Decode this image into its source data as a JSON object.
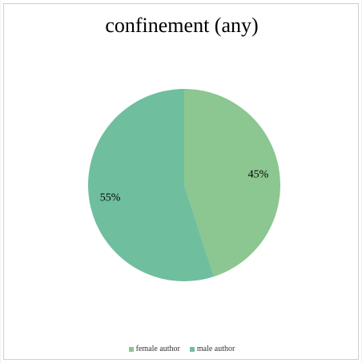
{
  "chart_data": {
    "type": "pie",
    "title": "confinement (any)",
    "categories": [
      "female author",
      "male author"
    ],
    "values": [
      45,
      55
    ],
    "labels": [
      "45%",
      "55%"
    ],
    "colors": [
      "#8cc690",
      "#6fbf9f"
    ],
    "legend_position": "bottom",
    "start_angle_deg": 0,
    "direction": "clockwise"
  }
}
